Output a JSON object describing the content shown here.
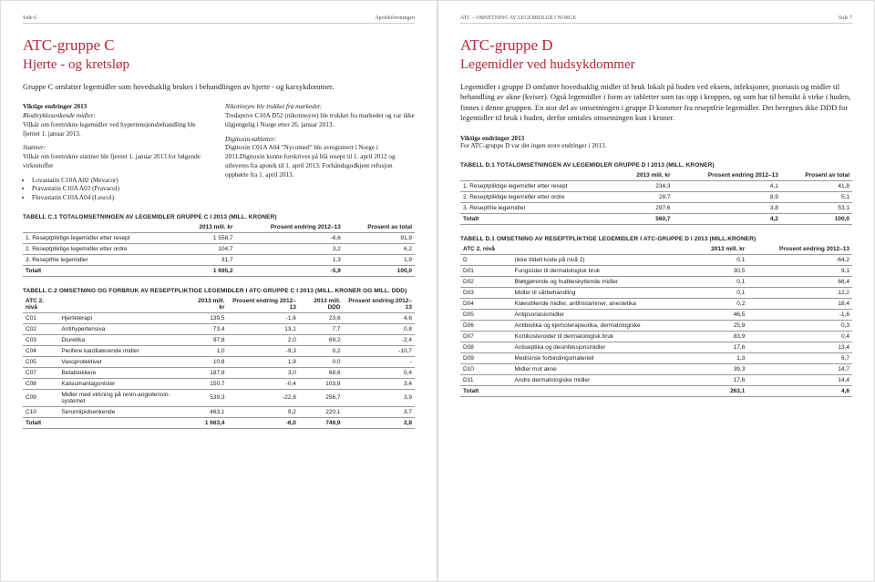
{
  "pageL": {
    "side": "Side 6",
    "org": "Apotekforeningen"
  },
  "pageR": {
    "side": "Side 7",
    "title": "ATC – OMSETNING AV LEGEMIDLER I NORGE"
  },
  "left": {
    "h1": "ATC-gruppe C",
    "h2": "Hjerte - og kretsløp",
    "intro": "Gruppe C omfatter legemidler som hovedsaklig brukes i behandlingen av hjerte - og karsykdommer.",
    "col1": {
      "t1": "Viktige endringer 2013",
      "p1a": "Blodtrykkssenkende midler:",
      "p1b": "Vilkår om foretrukne legemidler ved hypertensjonsbehandling ble fjernet 1. januar 2013.",
      "p2a": "Statiner:",
      "p2b": "Vilkår om foretrukne statiner ble fjernet 1. januar 2013 for følgende virkestoffer",
      "li1": "Lovastatin C10A A02 (Mevacor)",
      "li2": "Pravastatin C10A A03 (Pravacol)",
      "li3": "Fluvastatin C10A A04 (Lescol)"
    },
    "col2": {
      "p1a": "Nikotinsyre ble trukket fra markedet:",
      "p1b": "Tredaptive C10A D52 (nikotinsyre) ble trukket fra markedet og var ikke tilgjengelig i Norge etter 26. januar 2013.",
      "p2a": "Digitoxin-tabletter:",
      "p2b": "Digitoxin C01A A04 \"Nycomed\" ble avregistrert i Norge i 2011.Digitoxin kunne forskrives på blå resept til 1. april 2012 og utleveres fra apotek til 1. april 2013. Forhåndsgodkjent refusjon opphørte fra 1. april 2013."
    },
    "tC1": {
      "title": "TABELL C.1 TOTALOMSETNINGEN AV LEGEMIDLER GRUPPE C I 2013 (MILL. KRONER)",
      "h": [
        "",
        "2013 mill. kr",
        "Prosent endring 2012–13",
        "Prosent av total"
      ],
      "r": [
        [
          "1. Reseptpliktige legemidler etter resept",
          "1 558,7",
          "-6,6",
          "91,9"
        ],
        [
          "2. Reseptpliktige legemidler etter ordre",
          "104,7",
          "3,2",
          "6,2"
        ],
        [
          "3. Reseptfrie legemidler",
          "31,7",
          "1,3",
          "1,9"
        ]
      ],
      "tot": [
        "Totalt",
        "1 695,2",
        "-5,9",
        "100,0"
      ]
    },
    "tC2": {
      "title": "TABELL C.2 OMSETNING OG FORBRUK AV RESEPTPLIKTIGE LEGEMIDLER I ATC-GRUPPE C I 2013 (MILL. KRONER OG MILL. DDD)",
      "h": [
        "ATC 2. nivå",
        "",
        "2013 mill. kr",
        "Prosent endring 2012–13",
        "2013 mill. DDD",
        "Prosent endring 2012–13"
      ],
      "r": [
        [
          "C01",
          "Hjerteterapi",
          "139,5",
          "-1,6",
          "23,6",
          "4,6"
        ],
        [
          "C02",
          "Antihypertensiva",
          "73,4",
          "13,1",
          "7,7",
          "0,8"
        ],
        [
          "C03",
          "Diuretika",
          "97,8",
          "2,0",
          "69,2",
          "-2,4"
        ],
        [
          "C04",
          "Perifere kardilaterende midler",
          "1,0",
          "-9,3",
          "0,2",
          "-10,7"
        ],
        [
          "C05",
          "Vasoprotektiver",
          "10,8",
          "1,9",
          "0,0",
          "-"
        ],
        [
          "C07",
          "Betablokkere",
          "187,8",
          "3,0",
          "68,6",
          "0,4"
        ],
        [
          "C08",
          "Kalsiumantagonister",
          "150,7",
          "-0,4",
          "103,9",
          "3,4"
        ],
        [
          "C09",
          "Midler med virkning på renin-angiotensin-systemet",
          "539,3",
          "-22,8",
          "256,7",
          "3,9"
        ],
        [
          "C10",
          "Serumlipidsenkende",
          "463,1",
          "9,2",
          "220,1",
          "3,7"
        ]
      ],
      "tot": [
        "Totalt",
        "",
        "1 663,4",
        "-6,0",
        "749,9",
        "2,8"
      ]
    }
  },
  "right": {
    "h1": "ATC-gruppe D",
    "h2": "Legemidler ved hudsykdommer",
    "intro1": "Legemidler i gruppe D omfatter hovedsaklig midler til bruk lokalt på huden ved eksem, infeksjoner, psoriasis og midler til behandling av akne (kviser). Også legemidler i form av tabletter som tas opp i kroppen, og som har til hensikt å virke i huden, finnes i denne gruppen. En stor del av omsetningen i gruppe D kommer fra reseptfrie legemidler. Det beregnes ikke DDD for legemidler til bruk i huden, derfor omtales omsetningen kun i kroner.",
    "t1": "Viktige endringer 2013",
    "p1": "For ATC-gruppe D var det ingen store endringer i 2013.",
    "tD1": {
      "title": "TABELL D.1 TOTALOMSETNINGEN AV LEGEMIDLER GRUPPE D I 2013 (MILL. KRONER)",
      "h": [
        "",
        "2013 mill. kr",
        "Prosent endring 2012–13",
        "Prosent av total"
      ],
      "r": [
        [
          "1. Reseptpliktige legemidler etter resept",
          "234,3",
          "4,1",
          "41,8"
        ],
        [
          "2. Reseptpliktige legemidler etter ordre",
          "28,7",
          "8,9",
          "5,1"
        ],
        [
          "3. Reseptfrie legemidler",
          "297,6",
          "3,8",
          "53,1"
        ]
      ],
      "tot": [
        "Totalt",
        "560,7",
        "4,2",
        "100,0"
      ]
    },
    "tD2": {
      "title": "TABELL D.1 OMSETNING AV RESEPTPLIKTIGE LEGEMIDLER I ATC-GRUPPE D I 2013 (MILL.KRONER)",
      "h": [
        "ATC 2. nivå",
        "",
        "2013 mill. kr",
        "Prosent endring 2012–13"
      ],
      "r": [
        [
          "D",
          "(ikke tildelt kode på nivå 2)",
          "0,1",
          "-64,2"
        ],
        [
          "D01",
          "Fungicider til dermatologisk bruk",
          "30,5",
          "9,1"
        ],
        [
          "D02",
          "Bløtgjørende og hudbeskyttende midler",
          "0,1",
          "66,4"
        ],
        [
          "D03",
          "Midler til sårbehandling",
          "0,1",
          "12,2"
        ],
        [
          "D04",
          "Kløestillende midler, antihistaminer, anestetika",
          "0,2",
          "18,4"
        ],
        [
          "D05",
          "Antipsoriasismidler",
          "46,5",
          "-1,6"
        ],
        [
          "D06",
          "Antibiotika og kjemoterapeutika, dermatologiske",
          "25,9",
          "0,3"
        ],
        [
          "D07",
          "Kortikosteroider til dermatologisk bruk",
          "83,9",
          "0,4"
        ],
        [
          "D08",
          "Antiseptika og desinfeksjonsmidler",
          "17,6",
          "13,4"
        ],
        [
          "D09",
          "Medisinsk forbindingsmateriell",
          "1,3",
          "6,7"
        ],
        [
          "D10",
          "Midler mot akne",
          "39,3",
          "14,7"
        ],
        [
          "D11",
          "Andre dermatologiske midler",
          "17,6",
          "14,4"
        ]
      ],
      "tot": [
        "Totalt",
        "",
        "263,1",
        "4,6"
      ]
    }
  }
}
